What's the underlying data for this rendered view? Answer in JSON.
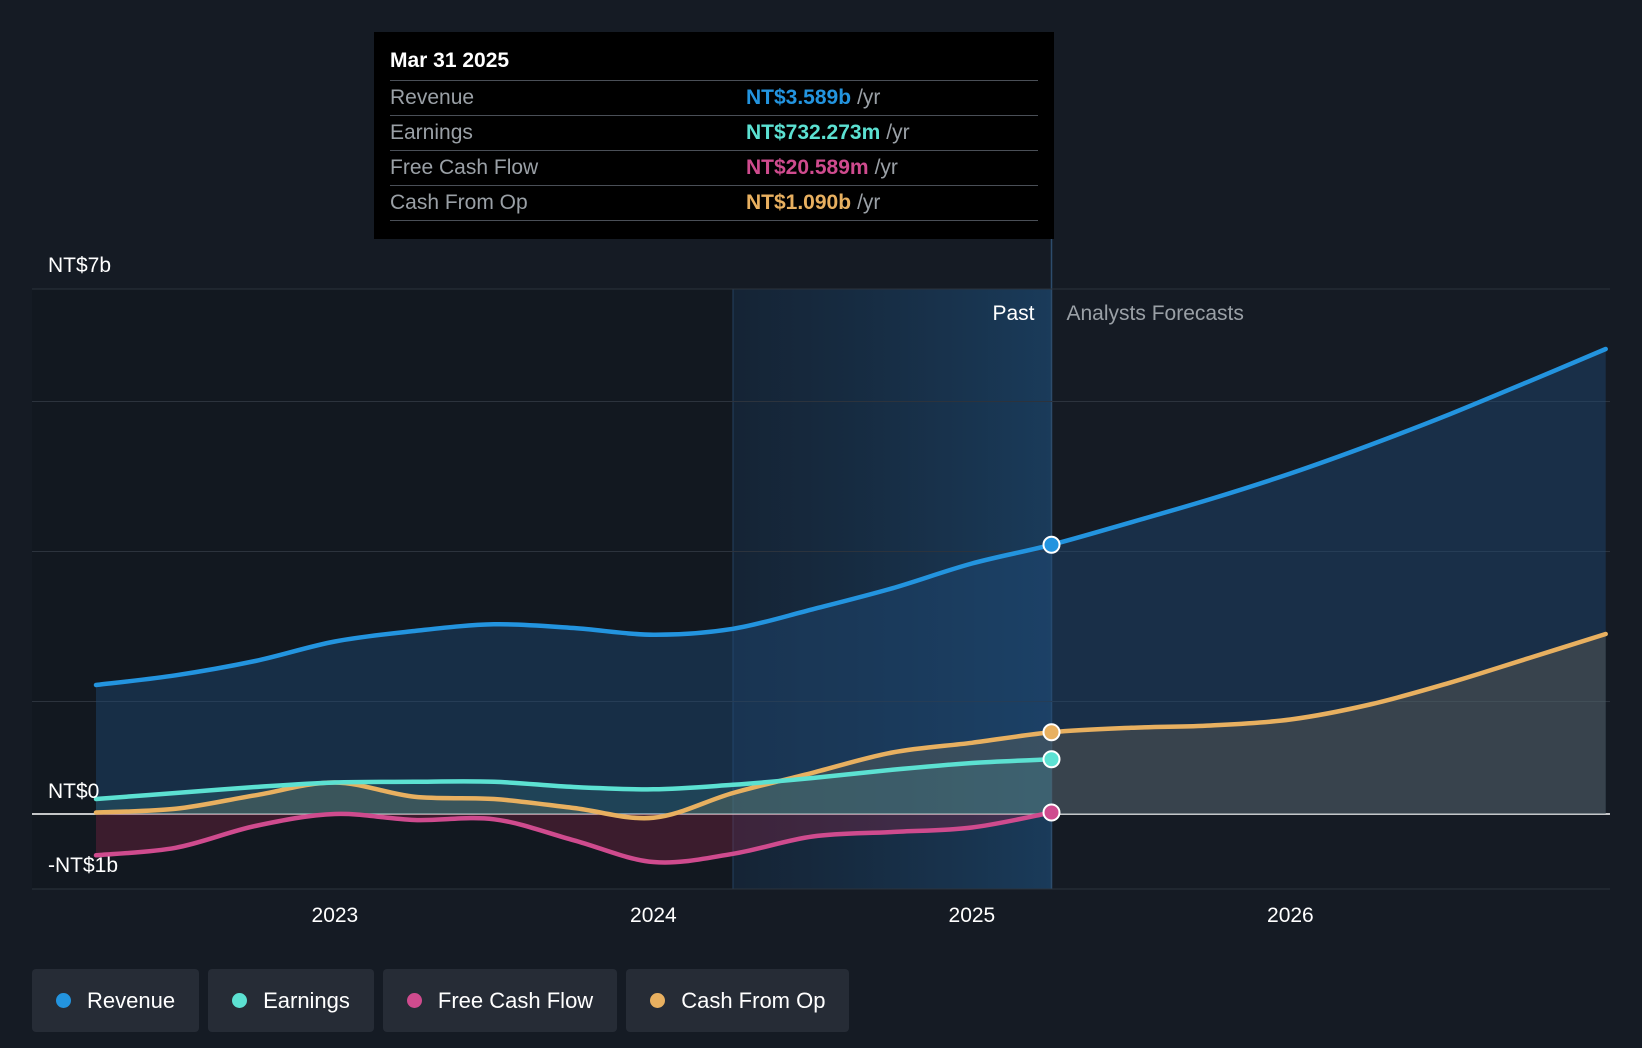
{
  "tooltip": {
    "date": "Mar 31 2025",
    "rows": [
      {
        "label": "Revenue",
        "value": "NT$3.589b",
        "unit": "/yr",
        "color": "#2394df"
      },
      {
        "label": "Earnings",
        "value": "NT$732.273m",
        "unit": "/yr",
        "color": "#5ce1d2"
      },
      {
        "label": "Free Cash Flow",
        "value": "NT$20.589m",
        "unit": "/yr",
        "color": "#cf4b8e"
      },
      {
        "label": "Cash From Op",
        "value": "NT$1.090b",
        "unit": "/yr",
        "color": "#e8b060"
      }
    ]
  },
  "legend": [
    {
      "label": "Revenue",
      "color": "#2394df"
    },
    {
      "label": "Earnings",
      "color": "#5ce1d2"
    },
    {
      "label": "Free Cash Flow",
      "color": "#cf4b8e"
    },
    {
      "label": "Cash From Op",
      "color": "#e8b060"
    }
  ],
  "chart_data": {
    "type": "line",
    "title": "",
    "y_top_label": "NT$7b",
    "y_zero_label": "NT$0",
    "y_bottom_label": "-NT$1b",
    "ylim": [
      -1,
      7
    ],
    "xlim": [
      2022.25,
      2026.99
    ],
    "x_ticks": [
      2023,
      2024,
      2025,
      2026
    ],
    "x_tick_labels": [
      "2023",
      "2024",
      "2025",
      "2026"
    ],
    "past_label": "Past",
    "forecast_label": "Analysts Forecasts",
    "past_end": 2025.25,
    "highlight_start": 2024.25,
    "series": [
      {
        "name": "Revenue",
        "color": "#2394df",
        "x": [
          2022.25,
          2022.5,
          2022.75,
          2023.0,
          2023.25,
          2023.5,
          2023.75,
          2024.0,
          2024.25,
          2024.5,
          2024.75,
          2025.0,
          2025.25,
          2025.5,
          2025.75,
          2026.0,
          2026.25,
          2026.5,
          2026.75,
          2026.99
        ],
        "y": [
          1.72,
          1.85,
          2.04,
          2.3,
          2.44,
          2.53,
          2.48,
          2.39,
          2.47,
          2.73,
          3.01,
          3.34,
          3.59,
          3.89,
          4.2,
          4.54,
          4.92,
          5.33,
          5.77,
          6.2
        ]
      },
      {
        "name": "Earnings",
        "color": "#5ce1d2",
        "x": [
          2022.25,
          2022.5,
          2022.75,
          2023.0,
          2023.25,
          2023.5,
          2023.75,
          2024.0,
          2024.25,
          2024.5,
          2024.75,
          2025.0,
          2025.25
        ],
        "y": [
          0.2,
          0.28,
          0.36,
          0.42,
          0.43,
          0.43,
          0.36,
          0.33,
          0.39,
          0.48,
          0.59,
          0.68,
          0.73
        ]
      },
      {
        "name": "Free Cash Flow",
        "color": "#cf4b8e",
        "x": [
          2022.25,
          2022.5,
          2022.75,
          2023.0,
          2023.25,
          2023.5,
          2023.75,
          2024.0,
          2024.25,
          2024.5,
          2024.75,
          2025.0,
          2025.25
        ],
        "y": [
          -0.55,
          -0.45,
          -0.16,
          0.0,
          -0.08,
          -0.07,
          -0.35,
          -0.64,
          -0.53,
          -0.3,
          -0.24,
          -0.18,
          0.02
        ]
      },
      {
        "name": "Cash From Op",
        "color": "#e8b060",
        "x": [
          2022.25,
          2022.5,
          2022.75,
          2023.0,
          2023.25,
          2023.5,
          2023.75,
          2024.0,
          2024.25,
          2024.5,
          2024.75,
          2025.0,
          2025.25,
          2025.5,
          2025.75,
          2026.0,
          2026.25,
          2026.5,
          2026.75,
          2026.99
        ],
        "y": [
          0.02,
          0.07,
          0.25,
          0.42,
          0.23,
          0.2,
          0.08,
          -0.05,
          0.28,
          0.55,
          0.82,
          0.95,
          1.09,
          1.15,
          1.18,
          1.26,
          1.46,
          1.75,
          2.08,
          2.4
        ]
      }
    ]
  }
}
